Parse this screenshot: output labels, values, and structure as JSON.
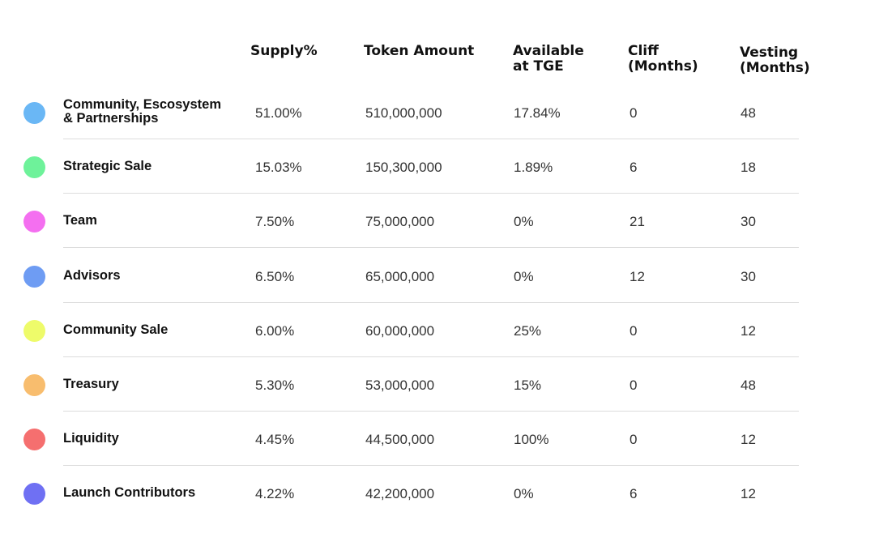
{
  "headers": {
    "supply": "Supply%",
    "token_amount": "Token Amount",
    "available_tge": "Available\nat TGE",
    "cliff": "Cliff\n(Months)",
    "vesting": "Vesting\n(Months)"
  },
  "rows": [
    {
      "category": "Community, Escosystem\n& Partnerships",
      "color": "#6ab7f5",
      "supply": "51.00%",
      "token_amount": "510,000,000",
      "available_tge": "17.84%",
      "cliff": "0",
      "vesting": "48"
    },
    {
      "category": "Strategic Sale",
      "color": "#6ef29a",
      "supply": "15.03%",
      "token_amount": "150,300,000",
      "available_tge": "1.89%",
      "cliff": "6",
      "vesting": "18"
    },
    {
      "category": "Team",
      "color": "#f46ff0",
      "supply": "7.50%",
      "token_amount": "75,000,000",
      "available_tge": "0%",
      "cliff": "21",
      "vesting": "30"
    },
    {
      "category": "Advisors",
      "color": "#6e9cf3",
      "supply": "6.50%",
      "token_amount": "65,000,000",
      "available_tge": "0%",
      "cliff": "12",
      "vesting": "30"
    },
    {
      "category": "Community Sale",
      "color": "#eefb6a",
      "supply": "6.00%",
      "token_amount": "60,000,000",
      "available_tge": "25%",
      "cliff": "0",
      "vesting": "12"
    },
    {
      "category": "Treasury",
      "color": "#f8bd6e",
      "supply": "5.30%",
      "token_amount": "53,000,000",
      "available_tge": "15%",
      "cliff": "0",
      "vesting": "48"
    },
    {
      "category": "Liquidity",
      "color": "#f56f6f",
      "supply": "4.45%",
      "token_amount": "44,500,000",
      "available_tge": "100%",
      "cliff": "0",
      "vesting": "12"
    },
    {
      "category": "Launch Contributors",
      "color": "#6f70f3",
      "supply": "4.22%",
      "token_amount": "42,200,000",
      "available_tge": "0%",
      "cliff": "6",
      "vesting": "12"
    }
  ]
}
